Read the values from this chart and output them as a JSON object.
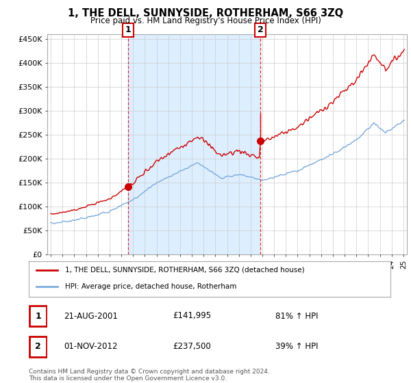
{
  "title": "1, THE DELL, SUNNYSIDE, ROTHERHAM, S66 3ZQ",
  "subtitle": "Price paid vs. HM Land Registry's House Price Index (HPI)",
  "legend_line1": "1, THE DELL, SUNNYSIDE, ROTHERHAM, S66 3ZQ (detached house)",
  "legend_line2": "HPI: Average price, detached house, Rotherham",
  "table_rows": [
    {
      "num": "1",
      "date": "21-AUG-2001",
      "price": "£141,995",
      "change": "81% ↑ HPI"
    },
    {
      "num": "2",
      "date": "01-NOV-2012",
      "price": "£237,500",
      "change": "39% ↑ HPI"
    }
  ],
  "footnote1": "Contains HM Land Registry data © Crown copyright and database right 2024.",
  "footnote2": "This data is licensed under the Open Government Licence v3.0.",
  "red_color": "#cc0000",
  "blue_color": "#7aabdb",
  "shade_color": "#ddeeff",
  "marker1_value": 141995,
  "marker2_value": 237500,
  "ylim": [
    0,
    460000
  ],
  "yticks": [
    0,
    50000,
    100000,
    150000,
    200000,
    250000,
    300000,
    350000,
    400000,
    450000
  ],
  "ytick_labels": [
    "£0",
    "£50K",
    "£100K",
    "£150K",
    "£200K",
    "£250K",
    "£300K",
    "£350K",
    "£400K",
    "£450K"
  ],
  "background_color": "#ffffff",
  "grid_color": "#cccccc",
  "sale1_year": 2001,
  "sale1_month": 8,
  "sale2_year": 2012,
  "sale2_month": 11,
  "start_year": 1995,
  "end_year": 2025
}
